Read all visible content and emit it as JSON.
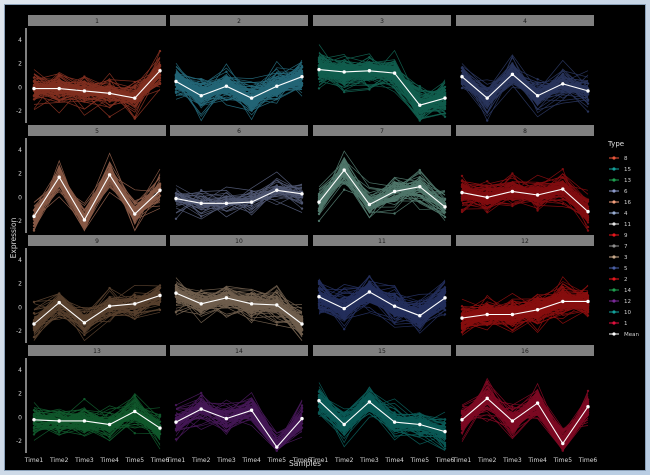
{
  "chart_data": {
    "type": "line",
    "xlabel": "Samples",
    "ylabel": "Expression",
    "x": [
      "Time1",
      "Time2",
      "Time3",
      "Time4",
      "Time5",
      "Time6"
    ],
    "ylim": [
      -3,
      5
    ],
    "yticks": [
      -2,
      0,
      2,
      4
    ],
    "ytick_labels": [
      "-2",
      "0",
      "2",
      "4"
    ],
    "grid": false,
    "legend": {
      "title": "Type",
      "placement": "right"
    },
    "panels": [
      {
        "label": "1",
        "color": "#e8553a",
        "lines": 90,
        "mean": [
          -0.1,
          -0.1,
          -0.3,
          -0.5,
          -0.9,
          1.4
        ]
      },
      {
        "label": "2",
        "color": "#3fb7d6",
        "lines": 110,
        "mean": [
          0.5,
          -0.7,
          0.1,
          -0.9,
          0.1,
          0.9
        ]
      },
      {
        "label": "3",
        "color": "#1fa98c",
        "lines": 140,
        "mean": [
          1.5,
          1.3,
          1.4,
          1.2,
          -1.5,
          -0.9
        ]
      },
      {
        "label": "4",
        "color": "#4a5fa6",
        "lines": 80,
        "mean": [
          0.9,
          -0.9,
          1.1,
          -0.7,
          0.3,
          -0.3
        ]
      },
      {
        "label": "5",
        "color": "#f4a07e",
        "lines": 60,
        "mean": [
          -1.6,
          1.7,
          -1.9,
          1.9,
          -1.4,
          0.6
        ]
      },
      {
        "label": "6",
        "color": "#8e9ccc",
        "lines": 40,
        "mean": [
          -0.1,
          -0.5,
          -0.5,
          -0.4,
          0.6,
          0.3
        ]
      },
      {
        "label": "7",
        "color": "#8fd6c0",
        "lines": 70,
        "mean": [
          -0.4,
          2.3,
          -0.6,
          0.5,
          0.9,
          -0.8
        ]
      },
      {
        "label": "8",
        "color": "#e8161c",
        "lines": 110,
        "mean": [
          0.4,
          0.0,
          0.5,
          0.2,
          0.7,
          -1.2
        ]
      },
      {
        "label": "9",
        "color": "#9e7452",
        "lines": 70,
        "mean": [
          -1.4,
          0.4,
          -1.3,
          0.1,
          0.3,
          1.0
        ]
      },
      {
        "label": "10",
        "color": "#c8a98a",
        "lines": 90,
        "mean": [
          1.2,
          0.3,
          0.8,
          0.3,
          0.2,
          -1.4
        ]
      },
      {
        "label": "11",
        "color": "#4054a6",
        "lines": 110,
        "mean": [
          0.9,
          -0.1,
          1.3,
          0.1,
          -0.7,
          0.8
        ]
      },
      {
        "label": "12",
        "color": "#f41a1a",
        "lines": 140,
        "mean": [
          -0.9,
          -0.6,
          -0.6,
          -0.2,
          0.5,
          0.5
        ]
      },
      {
        "label": "13",
        "color": "#1e9e4f",
        "lines": 90,
        "mean": [
          -0.2,
          -0.3,
          -0.3,
          -0.6,
          0.5,
          -0.9
        ]
      },
      {
        "label": "14",
        "color": "#7b2a9a",
        "lines": 70,
        "mean": [
          -0.4,
          0.7,
          -0.1,
          0.6,
          -2.5,
          -0.1
        ]
      },
      {
        "label": "15",
        "color": "#13a19b",
        "lines": 100,
        "mean": [
          1.4,
          -0.6,
          1.3,
          -0.4,
          -0.6,
          -1.2
        ]
      },
      {
        "label": "16",
        "color": "#e0103e",
        "lines": 120,
        "mean": [
          -0.2,
          1.6,
          -0.3,
          1.2,
          -2.2,
          0.9
        ]
      }
    ],
    "legend_entries": [
      {
        "label": "8",
        "color": "#e8553a"
      },
      {
        "label": "15",
        "color": "#13a19b"
      },
      {
        "label": "13",
        "color": "#1e9e4f"
      },
      {
        "label": "6",
        "color": "#8e9ccc"
      },
      {
        "label": "16",
        "color": "#f4a07e"
      },
      {
        "label": "4",
        "color": "#9aaed4"
      },
      {
        "label": "11",
        "color": "#e6e6e6"
      },
      {
        "label": "9",
        "color": "#e8161c"
      },
      {
        "label": "7",
        "color": "#8f8f8f"
      },
      {
        "label": "3",
        "color": "#c8a98a"
      },
      {
        "label": "5",
        "color": "#4a5fa6"
      },
      {
        "label": "2",
        "color": "#e8161c"
      },
      {
        "label": "14",
        "color": "#1e9e4f"
      },
      {
        "label": "12",
        "color": "#7b2a9a"
      },
      {
        "label": "10",
        "color": "#13a19b"
      },
      {
        "label": "1",
        "color": "#e0103e"
      },
      {
        "label": "Mean",
        "color": "#ffffff"
      }
    ]
  }
}
